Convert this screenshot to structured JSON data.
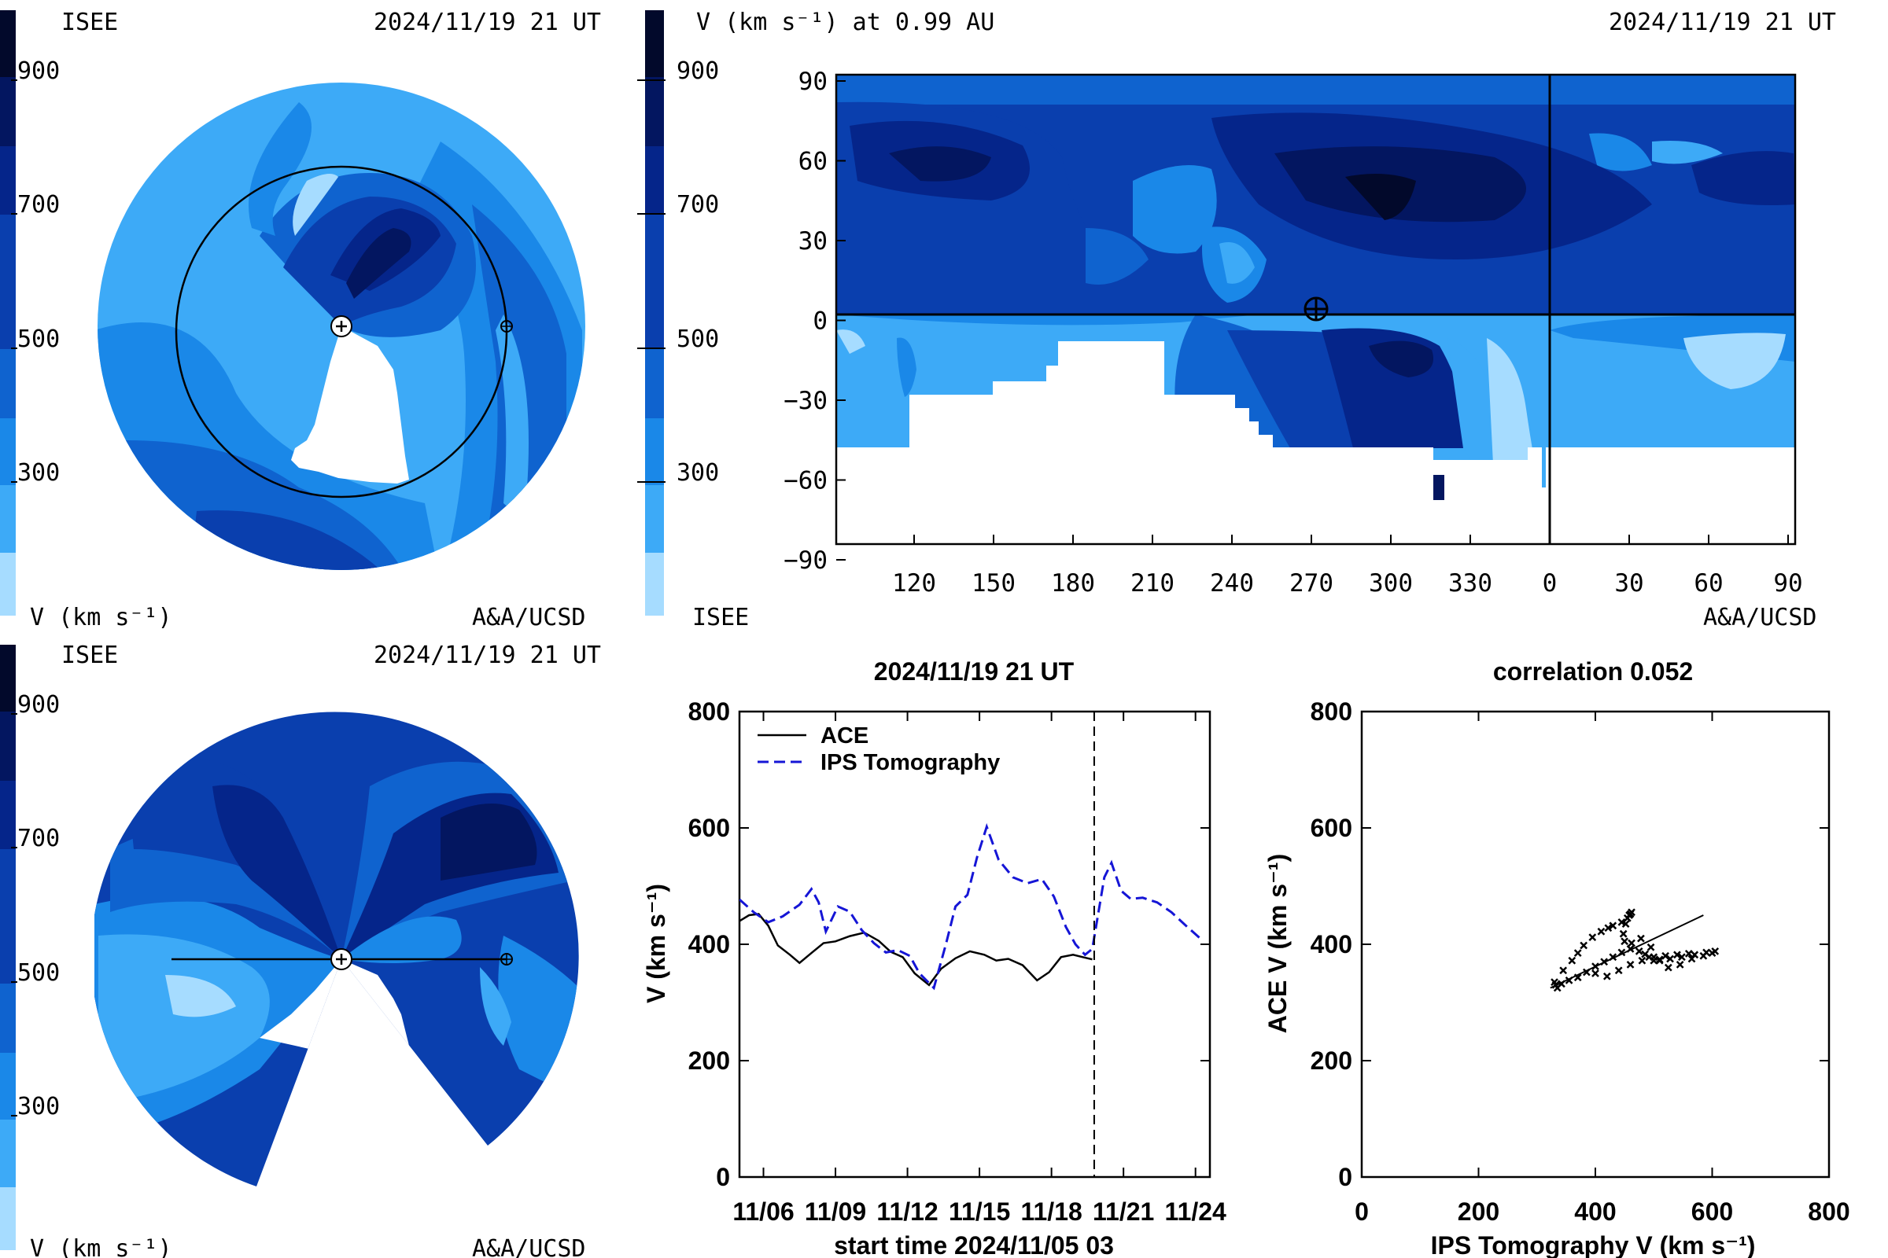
{
  "palette": [
    "#a6dcff",
    "#3daaf7",
    "#1a88e8",
    "#0f63cf",
    "#0a3fae",
    "#05258a",
    "#031660",
    "#02092b"
  ],
  "panels": {
    "top_left": {
      "header_left": "ISEE",
      "header_right": "2024/11/19 21 UT",
      "colorbar_ticks": [
        "900",
        "700",
        "500",
        "300"
      ],
      "footer_left": "V (km s⁻¹)",
      "footer_right": "A&A/UCSD"
    },
    "top_right": {
      "title": "V (km s⁻¹) at 0.99 AU",
      "header_right": "2024/11/19 21 UT",
      "colorbar_ticks": [
        "900",
        "700",
        "500",
        "300"
      ],
      "footer_left": "ISEE",
      "footer_right": "A&A/UCSD",
      "y_ticks": [
        "90",
        "60",
        "30",
        "0",
        "−30",
        "−60",
        "−90"
      ],
      "x_ticks": [
        "120",
        "150",
        "180",
        "210",
        "240",
        "270",
        "300",
        "330",
        "0",
        "30",
        "60",
        "90"
      ]
    },
    "bottom_left": {
      "header_left": "ISEE",
      "header_right": "2024/11/19 21 UT",
      "colorbar_ticks": [
        "900",
        "700",
        "500",
        "300"
      ],
      "footer_left": "V (km s⁻¹)",
      "footer_right": "A&A/UCSD"
    },
    "bottom_mid": {
      "title": "2024/11/19 21 UT",
      "xlabel": "start time 2024/11/05 03",
      "ylabel": "V (km s⁻¹)",
      "legend": [
        "ACE",
        "IPS Tomography"
      ]
    },
    "bottom_right": {
      "title": "correlation 0.052",
      "xlabel": "IPS Tomography V (km s⁻¹)",
      "ylabel": "ACE V (km s⁻¹)"
    }
  },
  "chart_data": [
    {
      "type": "line",
      "title": "2024/11/19 21 UT",
      "xlabel": "start time 2024/11/05 03",
      "ylabel": "V (km s⁻¹)",
      "xlim": [
        0.0,
        19.6
      ],
      "ylim": [
        0,
        800
      ],
      "x_tick_values": [
        1,
        4,
        7,
        10,
        13,
        16,
        19
      ],
      "x_tick_labels": [
        "11/06",
        "11/09",
        "11/12",
        "11/15",
        "11/18",
        "11/21",
        "11/24"
      ],
      "y_tick_values": [
        0,
        200,
        400,
        600,
        800
      ],
      "y_tick_labels": [
        "0",
        "200",
        "400",
        "600",
        "800"
      ],
      "now_marker_x": 14.78,
      "series": [
        {
          "name": "ACE",
          "x": [
            0.0,
            0.4,
            0.8,
            1.2,
            1.6,
            2.1,
            2.5,
            3.0,
            3.5,
            4.0,
            4.6,
            5.2,
            5.8,
            6.3,
            6.8,
            7.3,
            7.9,
            8.4,
            9.0,
            9.6,
            10.2,
            10.7,
            11.2,
            11.8,
            12.4,
            12.9,
            13.4,
            13.9,
            14.3,
            14.7
          ],
          "y": [
            440,
            450,
            452,
            432,
            398,
            382,
            368,
            385,
            402,
            405,
            414,
            420,
            406,
            387,
            378,
            350,
            330,
            358,
            376,
            388,
            382,
            372,
            375,
            364,
            338,
            352,
            378,
            382,
            378,
            374
          ]
        },
        {
          "name": "IPS Tomography",
          "x": [
            0.0,
            0.6,
            1.2,
            1.8,
            2.5,
            3.0,
            3.3,
            3.6,
            4.1,
            4.6,
            5.1,
            5.6,
            6.1,
            6.6,
            7.1,
            7.5,
            8.1,
            8.6,
            9.0,
            9.5,
            9.9,
            10.3,
            10.8,
            11.4,
            12.0,
            12.6,
            13.1,
            13.6,
            14.0,
            14.4,
            14.7,
            15.2,
            15.5,
            15.9,
            16.3,
            16.8,
            17.4,
            18.0,
            18.6,
            19.2
          ],
          "y": [
            477,
            455,
            438,
            448,
            468,
            495,
            472,
            422,
            465,
            456,
            424,
            402,
            386,
            390,
            380,
            350,
            325,
            400,
            465,
            485,
            550,
            602,
            545,
            515,
            505,
            512,
            482,
            430,
            400,
            382,
            392,
            515,
            540,
            492,
            478,
            480,
            472,
            455,
            432,
            410
          ]
        }
      ]
    },
    {
      "type": "scatter",
      "title": "correlation 0.052",
      "xlabel": "IPS Tomography V (km s⁻¹)",
      "ylabel": "ACE V (km s⁻¹)",
      "xlim": [
        0,
        800
      ],
      "ylim": [
        0,
        800
      ],
      "x_tick_values": [
        0,
        200,
        400,
        600,
        800
      ],
      "x_tick_labels": [
        "0",
        "200",
        "400",
        "600",
        "800"
      ],
      "y_tick_values": [
        0,
        200,
        400,
        600,
        800
      ],
      "y_tick_labels": [
        "0",
        "200",
        "400",
        "600",
        "800"
      ],
      "points_x": [
        330,
        345,
        360,
        370,
        380,
        395,
        410,
        422,
        430,
        445,
        455,
        460,
        462,
        458,
        452,
        448,
        450,
        462,
        478,
        495,
        510,
        525,
        545,
        565,
        585,
        600,
        605,
        590,
        570,
        548,
        528,
        510,
        500,
        492,
        485,
        475,
        460,
        445,
        430,
        415,
        400,
        385,
        370,
        355,
        342,
        335,
        332,
        400,
        420,
        440,
        460,
        480,
        500,
        520,
        540,
        560
      ],
      "points_y": [
        335,
        355,
        372,
        385,
        398,
        412,
        422,
        428,
        432,
        438,
        445,
        452,
        455,
        450,
        435,
        418,
        405,
        402,
        410,
        395,
        372,
        360,
        365,
        375,
        380,
        385,
        388,
        386,
        382,
        378,
        375,
        374,
        372,
        378,
        383,
        388,
        392,
        386,
        378,
        370,
        362,
        352,
        343,
        338,
        332,
        325,
        330,
        350,
        345,
        355,
        365,
        372,
        378,
        380,
        382,
        384
      ],
      "fit_line": {
        "x": [
          323,
          585
        ],
        "y": [
          325,
          450
        ]
      }
    },
    {
      "type": "heatmap",
      "title": "V (km s⁻¹) at 0.99 AU",
      "x_tick_labels": [
        "120",
        "150",
        "180",
        "210",
        "240",
        "270",
        "300",
        "330",
        "0",
        "30",
        "60",
        "90"
      ],
      "y_tick_labels": [
        "90",
        "60",
        "30",
        "0",
        "−30",
        "−60",
        "−90"
      ],
      "colorbar_ticks": [
        "900",
        "700",
        "500",
        "300"
      ],
      "earth_position": {
        "longitude": 270,
        "latitude": 0
      }
    }
  ]
}
